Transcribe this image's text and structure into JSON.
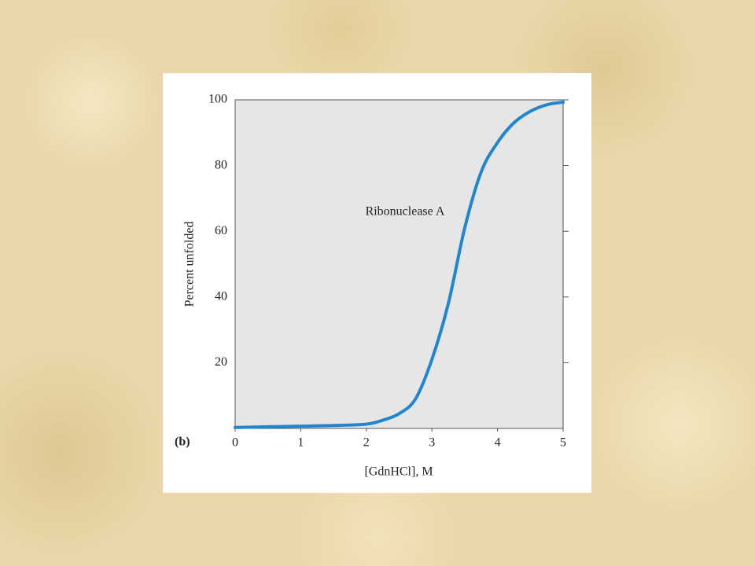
{
  "chart_data": {
    "type": "line",
    "panel_label": "(b)",
    "x_label": "[GdnHCl], M",
    "y_label": "Percent unfolded",
    "x": [
      0,
      0.5,
      1,
      1.5,
      2,
      2.25,
      2.5,
      2.75,
      3,
      3.25,
      3.5,
      3.75,
      4,
      4.25,
      4.5,
      4.75,
      5
    ],
    "series": [
      {
        "name": "Ribonuclease A",
        "color": "#1f86cf",
        "values": [
          0.3,
          0.5,
          0.7,
          0.9,
          1.3,
          2.5,
          4.5,
          9,
          21,
          38,
          61,
          78,
          87,
          93,
          96.5,
          98.5,
          99.3
        ]
      }
    ],
    "xlim": [
      0,
      5
    ],
    "xticks": [
      0,
      1,
      2,
      3,
      4,
      5
    ],
    "ylim": [
      0,
      100
    ],
    "yticks": [
      20,
      40,
      60,
      80,
      100
    ],
    "plot_color": "#e6e6e6"
  }
}
